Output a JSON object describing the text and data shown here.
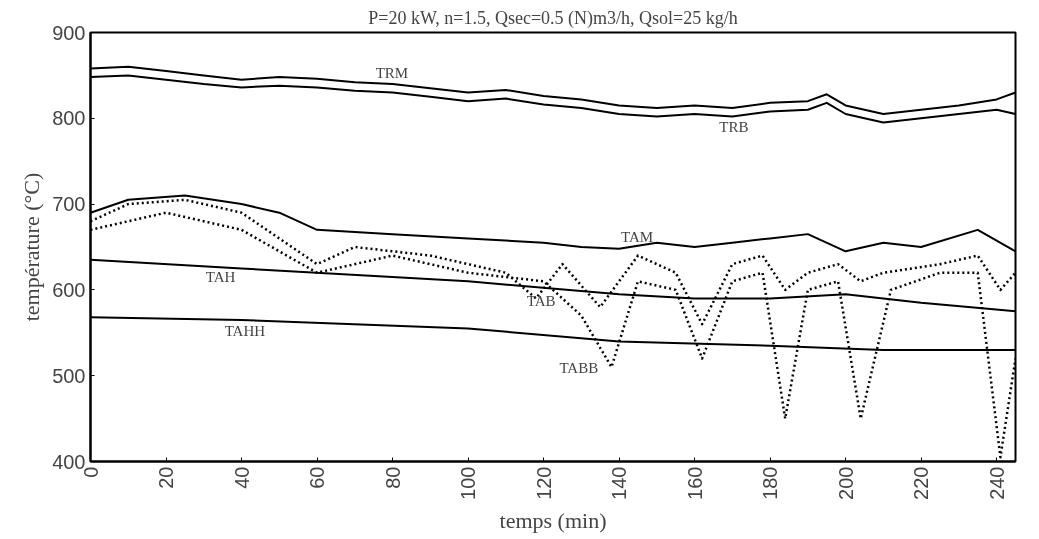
{
  "chart_data": {
    "type": "line",
    "title": "P=20 kW, n=1.5, Qsec=0.5 (N)m3/h, Qsol=25 kg/h",
    "xlabel": "temps (min)",
    "ylabel": "température (°C)",
    "xlim": [
      0,
      245
    ],
    "xticks": [
      0,
      20,
      40,
      60,
      80,
      100,
      120,
      140,
      160,
      180,
      200,
      220,
      240
    ],
    "ylim": [
      400,
      900
    ],
    "yticks": [
      400,
      500,
      600,
      700,
      800,
      900
    ],
    "grid": false,
    "series": [
      {
        "name": "TRM",
        "color": "#000000",
        "line_style": "solid",
        "x": [
          0,
          10,
          20,
          30,
          40,
          50,
          60,
          70,
          80,
          90,
          100,
          110,
          120,
          130,
          140,
          150,
          160,
          170,
          180,
          190,
          195,
          200,
          210,
          220,
          230,
          240,
          245
        ],
        "values": [
          858,
          860,
          855,
          850,
          845,
          848,
          846,
          842,
          840,
          835,
          830,
          833,
          826,
          822,
          815,
          812,
          815,
          812,
          818,
          820,
          828,
          815,
          805,
          810,
          815,
          822,
          830
        ]
      },
      {
        "name": "TRB",
        "color": "#000000",
        "line_style": "solid",
        "x": [
          0,
          10,
          20,
          30,
          40,
          50,
          60,
          70,
          80,
          90,
          100,
          110,
          120,
          130,
          140,
          150,
          160,
          170,
          180,
          190,
          195,
          200,
          210,
          220,
          230,
          240,
          245
        ],
        "values": [
          848,
          850,
          845,
          840,
          836,
          838,
          836,
          832,
          830,
          825,
          820,
          823,
          816,
          812,
          805,
          802,
          805,
          802,
          808,
          810,
          818,
          805,
          795,
          800,
          805,
          810,
          805
        ]
      },
      {
        "name": "TAM",
        "color": "#000000",
        "line_style": "solid",
        "x": [
          0,
          10,
          25,
          40,
          50,
          60,
          80,
          100,
          120,
          130,
          140,
          150,
          160,
          170,
          180,
          190,
          200,
          210,
          220,
          235,
          245
        ],
        "values": [
          690,
          705,
          710,
          700,
          690,
          670,
          665,
          660,
          655,
          650,
          648,
          655,
          650,
          655,
          660,
          665,
          645,
          655,
          650,
          670,
          645
        ]
      },
      {
        "name": "TAB",
        "color": "#000000",
        "line_style": "dotted",
        "x": [
          0,
          10,
          25,
          40,
          50,
          60,
          70,
          90,
          110,
          118,
          125,
          135,
          145,
          155,
          162,
          170,
          178,
          184,
          190,
          198,
          204,
          210,
          225,
          235,
          241,
          245
        ],
        "values": [
          680,
          700,
          705,
          690,
          660,
          630,
          650,
          640,
          620,
          590,
          630,
          580,
          640,
          620,
          560,
          630,
          640,
          600,
          620,
          630,
          610,
          620,
          630,
          640,
          600,
          620
        ]
      },
      {
        "name": "TABB",
        "color": "#000000",
        "line_style": "dotted",
        "x": [
          0,
          20,
          40,
          60,
          80,
          100,
          120,
          130,
          138,
          145,
          155,
          162,
          170,
          178,
          184,
          190,
          198,
          204,
          212,
          225,
          235,
          241,
          245
        ],
        "values": [
          670,
          690,
          670,
          620,
          640,
          620,
          610,
          570,
          510,
          610,
          600,
          520,
          610,
          620,
          450,
          600,
          610,
          450,
          600,
          620,
          620,
          405,
          520
        ]
      },
      {
        "name": "TAH",
        "color": "#000000",
        "line_style": "solid",
        "x": [
          0,
          40,
          100,
          140,
          160,
          180,
          200,
          220,
          245
        ],
        "values": [
          635,
          625,
          610,
          595,
          590,
          590,
          595,
          585,
          575
        ]
      },
      {
        "name": "TAHH",
        "color": "#000000",
        "line_style": "solid",
        "x": [
          0,
          40,
          100,
          140,
          180,
          210,
          245
        ],
        "values": [
          568,
          565,
          555,
          540,
          535,
          530,
          530
        ]
      }
    ]
  }
}
